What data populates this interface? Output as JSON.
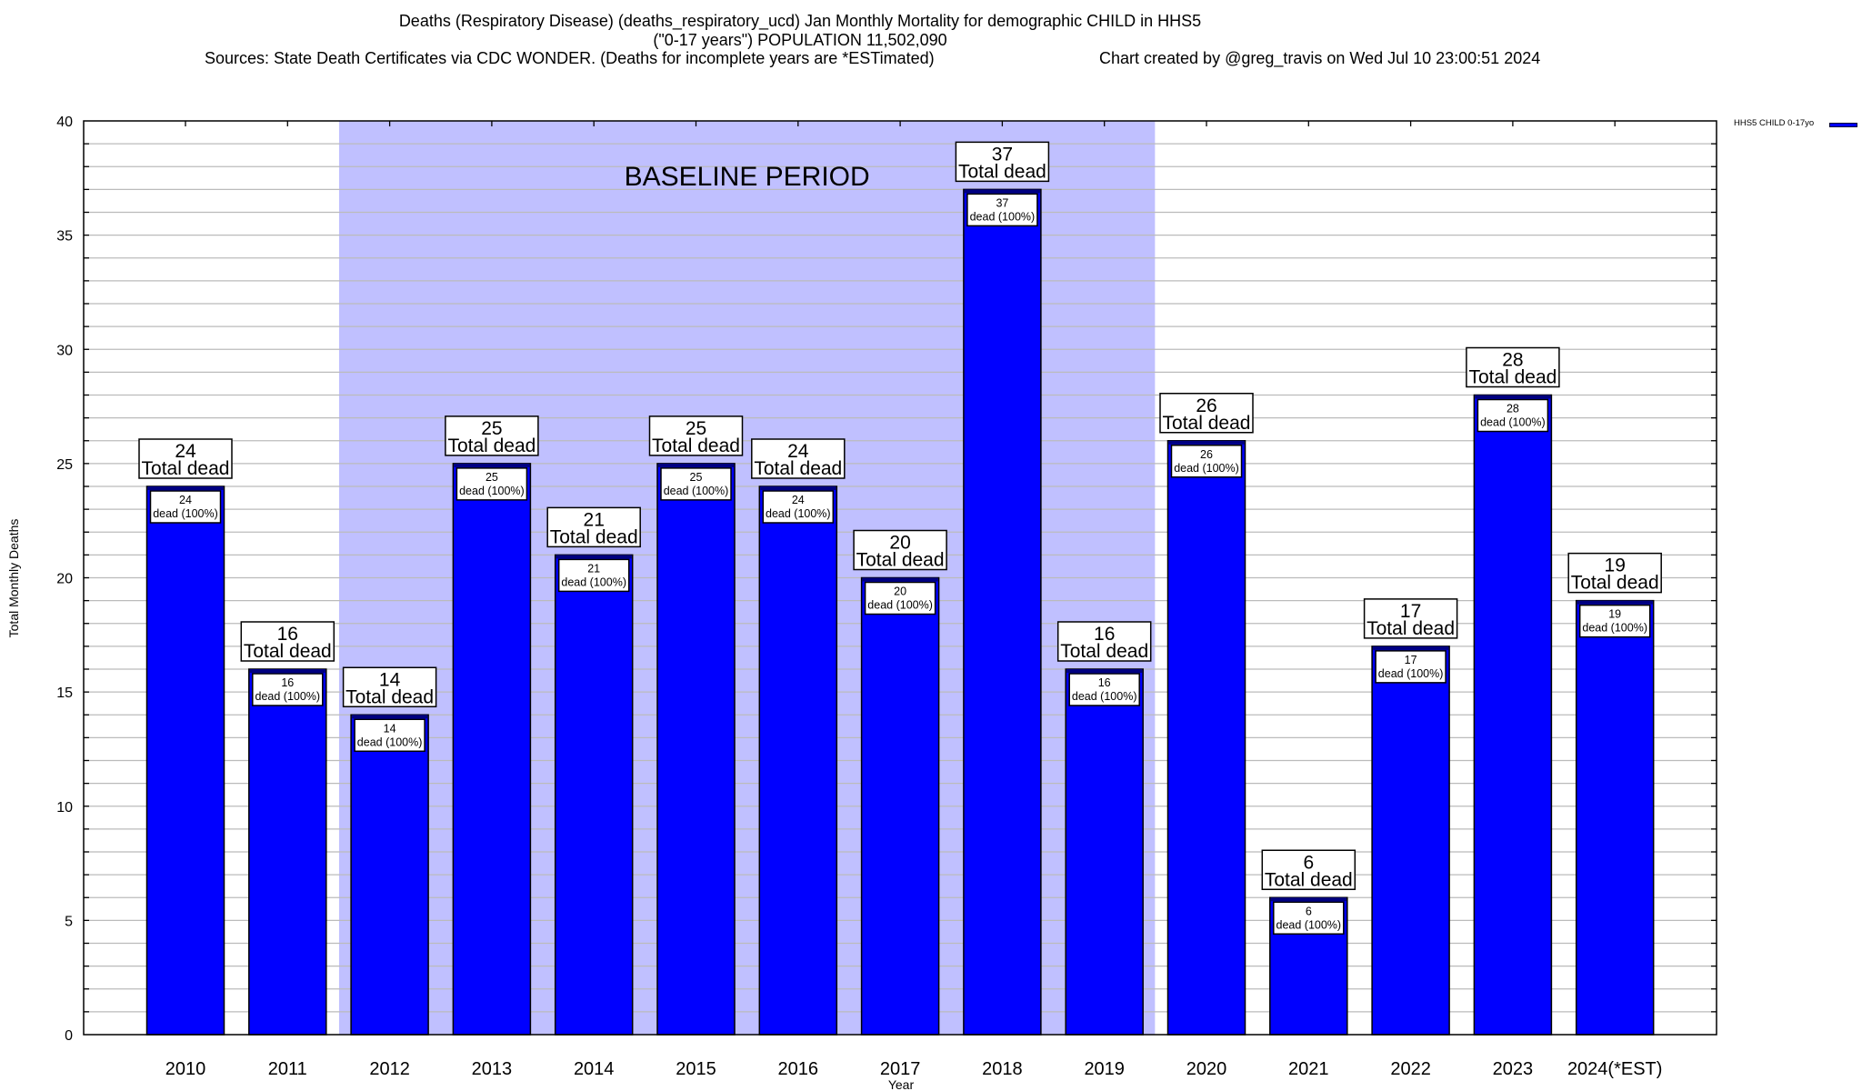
{
  "title": {
    "line1": "Deaths (Respiratory Disease) (deaths_respiratory_ucd) Jan Monthly Mortality for demographic CHILD in HHS5",
    "line2": "(\"0-17 years\") POPULATION 11,502,090",
    "line3_left": "Sources: State Death Certificates via CDC WONDER. (Deaths for incomplete years are *ESTimated)",
    "line3_right": "Chart created by @greg_travis on Wed Jul 10 23:00:51 2024"
  },
  "chart_data": {
    "type": "bar",
    "xlabel": "Year",
    "ylabel": "Total Monthly Deaths",
    "ylim": [
      0,
      40
    ],
    "yticks": [
      0,
      5,
      10,
      15,
      20,
      25,
      30,
      35,
      40
    ],
    "grid": true,
    "categories": [
      "2010",
      "2011",
      "2012",
      "2013",
      "2014",
      "2015",
      "2016",
      "2017",
      "2018",
      "2019",
      "2020",
      "2021",
      "2022",
      "2023",
      "2024(*EST)"
    ],
    "series": [
      {
        "name": "HHS5 CHILD 0-17yo",
        "values": [
          24,
          16,
          14,
          25,
          21,
          25,
          24,
          20,
          37,
          16,
          26,
          6,
          17,
          28,
          19
        ]
      }
    ],
    "total_label": "Total dead",
    "inner_label": "dead (100%)",
    "baseline": {
      "label": "BASELINE PERIOD",
      "from": "2012",
      "to": "2019"
    },
    "legend_position": "top-right",
    "colors": {
      "bar": "#0000ff",
      "baseline_shade": "#c0c0ff",
      "grid": "#bbbbbb"
    }
  }
}
